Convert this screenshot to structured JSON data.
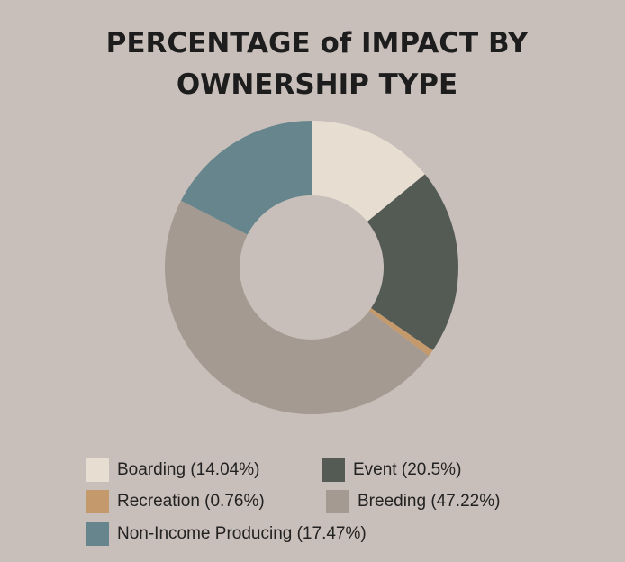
{
  "chart_data": {
    "type": "donut",
    "title": [
      "PERCENTAGE of IMPACT BY",
      "OWNERSHIP TYPE"
    ],
    "categories": [
      "Boarding (14.04%)",
      "Event (20.5%)",
      "Recreation (0.76%)",
      "Breeding (47.22%)",
      "Non-Income Producing (17.47%)"
    ],
    "values": [
      14.04,
      20.5,
      0.76,
      47.22,
      17.47
    ],
    "colors": [
      "#e8ddd1",
      "#545b55",
      "#c49a6c",
      "#a59a91",
      "#66858c"
    ]
  }
}
